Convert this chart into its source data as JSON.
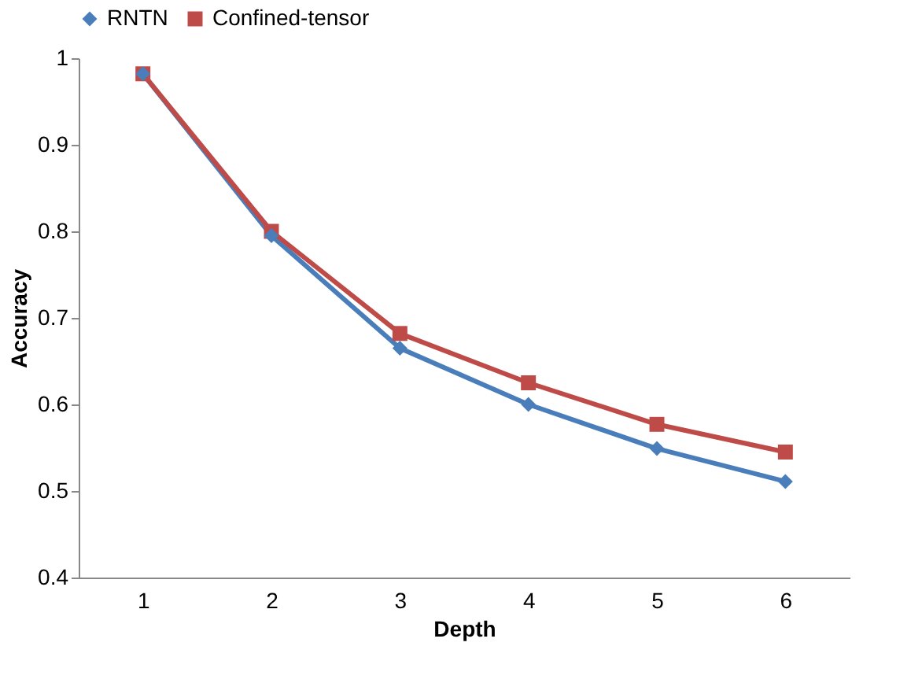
{
  "chart_data": {
    "type": "line",
    "xlabel": "Depth",
    "ylabel": "Accuracy",
    "categories": [
      "1",
      "2",
      "3",
      "4",
      "5",
      "6"
    ],
    "ylim": [
      0.4,
      1
    ],
    "yticks": [
      0.4,
      0.5,
      0.6,
      0.7,
      0.8,
      0.9,
      1
    ],
    "grid": false,
    "legend": "top",
    "line_style": "solid",
    "series": [
      {
        "name": "RNTN",
        "color": "#4a7ebb",
        "marker": "diamond",
        "values": [
          0.982,
          0.795,
          0.665,
          0.6,
          0.549,
          0.511
        ]
      },
      {
        "name": "Confined-tensor",
        "color": "#be4b48",
        "marker": "square",
        "values": [
          0.982,
          0.8,
          0.682,
          0.625,
          0.577,
          0.545
        ]
      }
    ]
  }
}
